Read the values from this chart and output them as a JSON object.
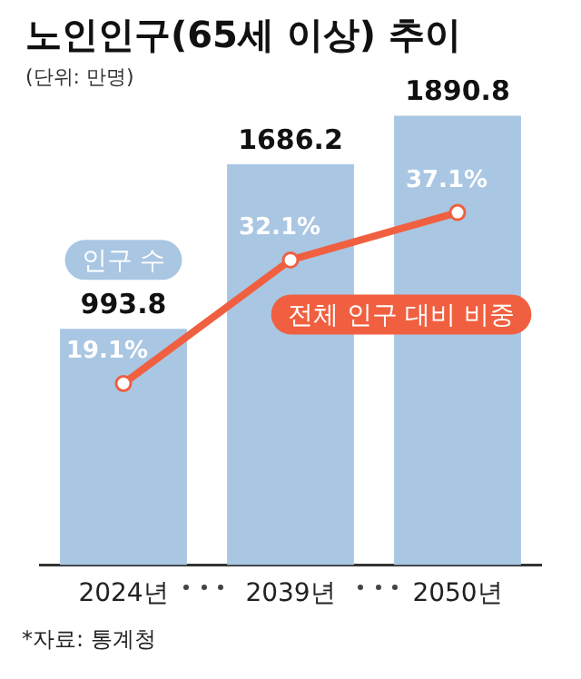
{
  "chart_data": {
    "type": "bar",
    "title": "노인인구(65세 이상) 추이",
    "subtitle": "(단위: 만명)",
    "categories": [
      "2024년",
      "2039년",
      "2050년"
    ],
    "series": [
      {
        "name": "인구 수",
        "color": "#a9c6e3",
        "values": [
          993.8,
          1686.2,
          1890.8
        ],
        "value_labels": [
          "993.8",
          "1686.2",
          "1890.8"
        ]
      },
      {
        "name": "전체 인구 대비 비중",
        "type": "line",
        "axis": "y2",
        "color": "#f06040",
        "values": [
          19.1,
          32.1,
          37.1
        ],
        "value_labels": [
          "19.1%",
          "32.1%",
          "37.1%"
        ]
      }
    ],
    "marker": "circle",
    "line_style": "solid",
    "grid": false,
    "legend": false,
    "tick_labels": "x",
    "annotations": [
      "*자료: 통계청"
    ]
  }
}
